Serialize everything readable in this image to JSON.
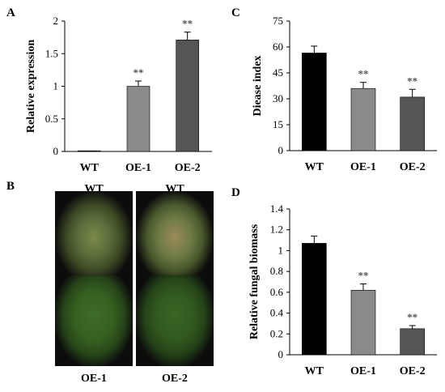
{
  "panel_letters": {
    "a": "A",
    "b": "B",
    "c": "C",
    "d": "D"
  },
  "colors": {
    "wt": "#000000",
    "oe1": "#8a8a8a",
    "oe2": "#555555"
  },
  "chart_data": [
    {
      "type": "bar",
      "panel": "A",
      "categories": [
        "WT",
        "OE-1",
        "OE-2"
      ],
      "values": [
        0.01,
        1.0,
        1.71
      ],
      "errors": [
        0.0,
        0.08,
        0.12
      ],
      "significance": [
        "",
        "**",
        "**"
      ],
      "ylabel": "Relative expression",
      "ylim": [
        0,
        2
      ],
      "yticks": [
        "0",
        "0.5",
        "1",
        "1.5",
        "2"
      ]
    },
    {
      "type": "bar",
      "panel": "C",
      "categories": [
        "WT",
        "OE-1",
        "OE-2"
      ],
      "values": [
        56.5,
        36.0,
        31.0
      ],
      "errors": [
        4.0,
        3.5,
        4.5
      ],
      "significance": [
        "",
        "**",
        "**"
      ],
      "ylabel": "Diease index",
      "ylim": [
        0,
        75
      ],
      "yticks": [
        "0",
        "15",
        "30",
        "45",
        "60",
        "75"
      ]
    },
    {
      "type": "bar",
      "panel": "D",
      "categories": [
        "WT",
        "OE-1",
        "OE-2"
      ],
      "values": [
        1.07,
        0.62,
        0.25
      ],
      "errors": [
        0.07,
        0.06,
        0.03
      ],
      "significance": [
        "",
        "**",
        "**"
      ],
      "ylabel": "Relative fungal biomass",
      "ylim": [
        0,
        1.4
      ],
      "yticks": [
        "0",
        "0.2",
        "0.4",
        "0.6",
        "0.8",
        "1",
        "1.2",
        "1.4"
      ]
    }
  ],
  "photos": {
    "top_left": "WT",
    "top_right": "WT",
    "bottom_left": "OE-1",
    "bottom_right": "OE-2"
  }
}
